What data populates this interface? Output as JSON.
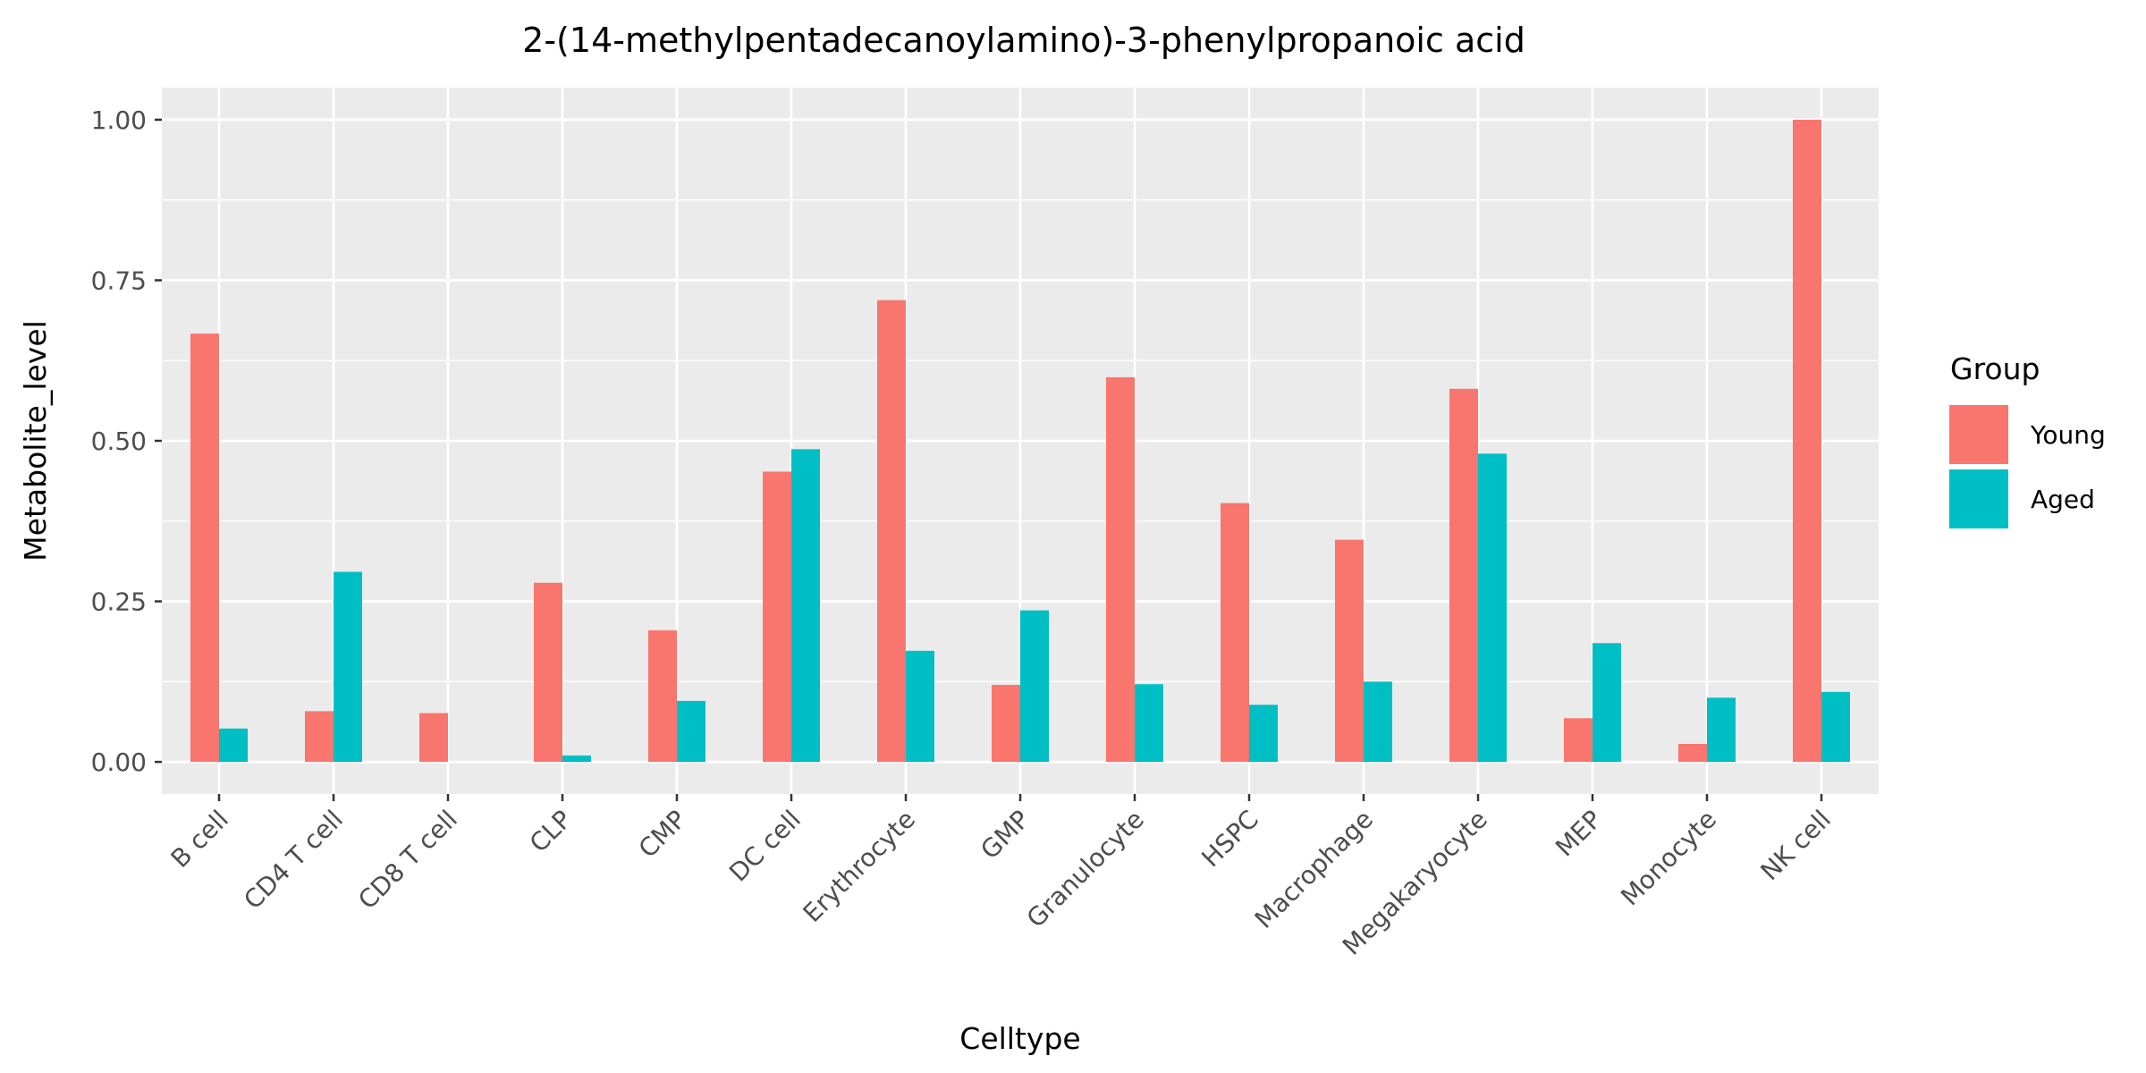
{
  "chart_data": {
    "type": "bar",
    "title": "2-(14-methylpentadecanoylamino)-3-phenylpropanoic acid",
    "xlabel": "Celltype",
    "ylabel": "Metabolite_level",
    "ylim": [
      -0.05,
      1.05
    ],
    "yticks": [
      0.0,
      0.25,
      0.5,
      0.75,
      1.0
    ],
    "ytick_labels": [
      "0.00",
      "0.25",
      "0.50",
      "0.75",
      "1.00"
    ],
    "grid": true,
    "legend": {
      "title": "Group",
      "position": "right"
    },
    "categories": [
      "B cell",
      "CD4 T cell",
      "CD8 T cell",
      "CLP",
      "CMP",
      "DC cell",
      "Erythrocyte",
      "GMP",
      "Granulocyte",
      "HSPC",
      "Macrophage",
      "Megakaryocyte",
      "MEP",
      "Monocyte",
      "NK cell"
    ],
    "series": [
      {
        "name": "Young",
        "color": "#F8766D",
        "values": [
          0.667,
          0.079,
          0.076,
          0.279,
          0.205,
          0.452,
          0.719,
          0.12,
          0.599,
          0.403,
          0.346,
          0.581,
          0.068,
          0.028,
          1.0
        ]
      },
      {
        "name": "Aged",
        "color": "#00BFC4",
        "values": [
          0.052,
          0.296,
          0.0,
          0.01,
          0.095,
          0.487,
          0.173,
          0.236,
          0.121,
          0.089,
          0.125,
          0.48,
          0.185,
          0.1,
          0.109
        ]
      }
    ],
    "colors": {
      "panel_background": "#EBEBEB",
      "grid": "#FFFFFF",
      "tick_text": "#4D4D4D"
    }
  }
}
